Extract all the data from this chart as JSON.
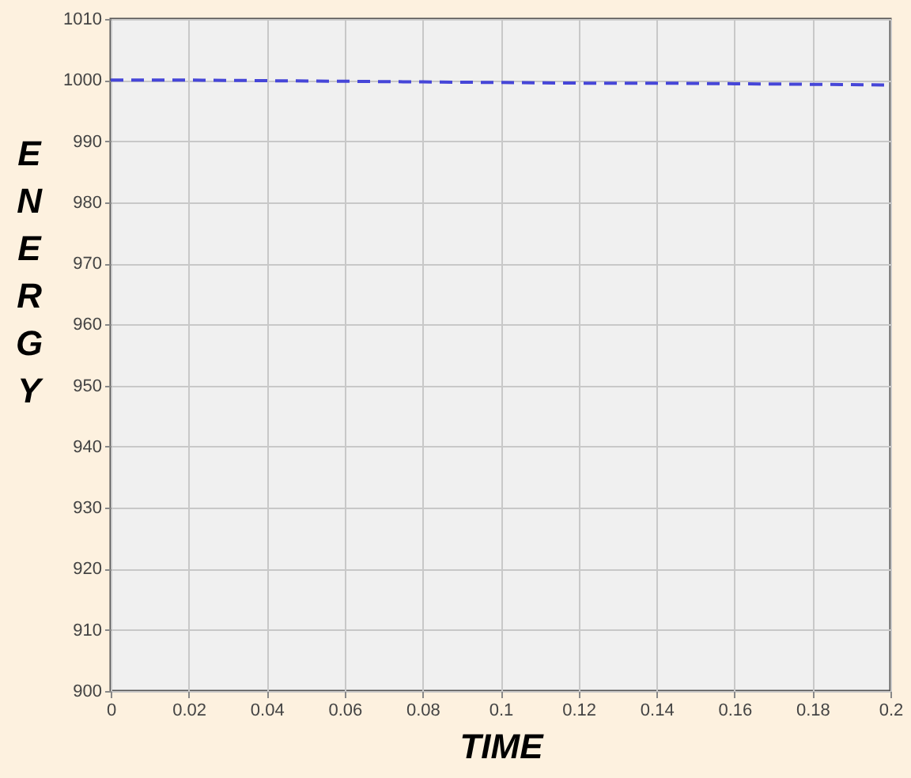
{
  "chart_data": {
    "type": "line",
    "xlabel": "TIME",
    "ylabel": "ENERGY",
    "x": [
      0,
      0.02,
      0.04,
      0.06,
      0.08,
      0.1,
      0.12,
      0.14,
      0.16,
      0.18,
      0.2
    ],
    "series": [
      {
        "color": "#4646d8",
        "values": [
          1000,
          1000,
          999.9,
          999.8,
          999.7,
          999.6,
          999.5,
          999.5,
          999.4,
          999.3,
          999.2
        ]
      }
    ],
    "xlim": [
      0,
      0.2
    ],
    "xticks": [
      0,
      0.02,
      0.04,
      0.06,
      0.08,
      0.1,
      0.12,
      0.14,
      0.16,
      0.18,
      0.2
    ],
    "ylim": [
      900,
      1010
    ],
    "yticks": [
      900,
      910,
      920,
      930,
      940,
      950,
      960,
      970,
      980,
      990,
      1000,
      1010
    ],
    "grid": true,
    "line_style": "dashed",
    "marker": "none"
  }
}
